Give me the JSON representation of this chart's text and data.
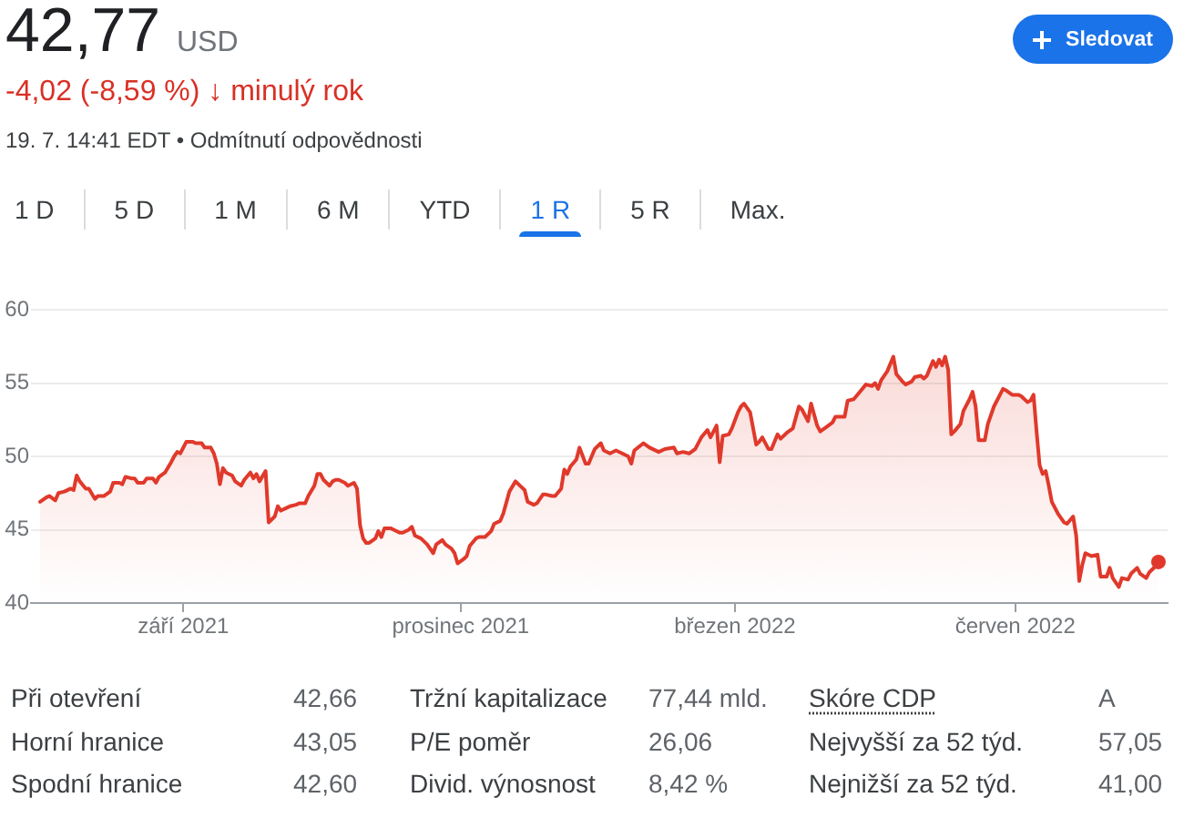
{
  "chart_data": {
    "type": "area",
    "title": "42,77",
    "subtitle": "-4,02 (-8,59 %) ↓ minulý rok",
    "x": [
      "2021-07-16",
      "2021-07-18",
      "2021-07-19",
      "2021-07-21",
      "2021-07-22",
      "2021-07-24",
      "2021-07-26",
      "2021-07-27",
      "2021-07-28",
      "2021-07-29",
      "2021-07-31",
      "2021-08-01",
      "2021-08-03",
      "2021-08-04",
      "2021-08-06",
      "2021-08-08",
      "2021-08-09",
      "2021-08-11",
      "2021-08-12",
      "2021-08-13",
      "2021-08-15",
      "2021-08-16",
      "2021-08-17",
      "2021-08-19",
      "2021-08-20",
      "2021-08-22",
      "2021-08-23",
      "2021-08-24",
      "2021-08-26",
      "2021-08-28",
      "2021-08-29",
      "2021-08-30",
      "2021-08-31",
      "2021-09-02",
      "2021-09-04",
      "2021-09-05",
      "2021-09-07",
      "2021-09-08",
      "2021-09-10",
      "2021-09-11",
      "2021-09-12",
      "2021-09-13",
      "2021-09-14",
      "2021-09-15",
      "2021-09-17",
      "2021-09-18",
      "2021-09-20",
      "2021-09-21",
      "2021-09-23",
      "2021-09-24",
      "2021-09-25",
      "2021-09-26",
      "2021-09-28",
      "2021-09-29",
      "2021-10-01",
      "2021-10-02",
      "2021-10-03",
      "2021-10-05",
      "2021-10-06",
      "2021-10-08",
      "2021-10-09",
      "2021-10-11",
      "2021-10-12",
      "2021-10-14",
      "2021-10-15",
      "2021-10-16",
      "2021-10-17",
      "2021-10-19",
      "2021-10-20",
      "2021-10-21",
      "2021-10-22",
      "2021-10-24",
      "2021-10-25",
      "2021-10-27",
      "2021-10-28",
      "2021-10-29",
      "2021-10-30",
      "2021-10-31",
      "2021-11-01",
      "2021-11-03",
      "2021-11-04",
      "2021-11-05",
      "2021-11-06",
      "2021-11-08",
      "2021-11-09",
      "2021-11-11",
      "2021-11-12",
      "2021-11-14",
      "2021-11-15",
      "2021-11-16",
      "2021-11-18",
      "2021-11-19",
      "2021-11-20",
      "2021-11-22",
      "2021-11-23",
      "2021-11-25",
      "2021-11-26",
      "2021-11-28",
      "2021-11-29",
      "2021-11-30",
      "2021-12-02",
      "2021-12-03",
      "2021-12-04",
      "2021-12-06",
      "2021-12-07",
      "2021-12-09",
      "2021-12-11",
      "2021-12-12",
      "2021-12-14",
      "2021-12-15",
      "2021-12-17",
      "2021-12-19",
      "2021-12-20",
      "2021-12-22",
      "2021-12-23",
      "2021-12-25",
      "2021-12-26",
      "2021-12-28",
      "2021-12-29",
      "2021-12-31",
      "2022-01-01",
      "2022-01-03",
      "2022-01-04",
      "2022-01-05",
      "2022-01-06",
      "2022-01-08",
      "2022-01-09",
      "2022-01-11",
      "2022-01-12",
      "2022-01-14",
      "2022-01-16",
      "2022-01-17",
      "2022-01-19",
      "2022-01-21",
      "2022-01-23",
      "2022-01-25",
      "2022-01-26",
      "2022-01-27",
      "2022-01-30",
      "2022-02-01",
      "2022-02-04",
      "2022-02-06",
      "2022-02-09",
      "2022-02-10",
      "2022-02-12",
      "2022-02-14",
      "2022-02-16",
      "2022-02-18",
      "2022-02-20",
      "2022-02-21",
      "2022-02-23",
      "2022-02-24",
      "2022-02-25",
      "2022-02-27",
      "2022-02-28",
      "2022-03-02",
      "2022-03-03",
      "2022-03-04",
      "2022-03-06",
      "2022-03-08",
      "2022-03-09",
      "2022-03-10",
      "2022-03-12",
      "2022-03-13",
      "2022-03-15",
      "2022-03-16",
      "2022-03-18",
      "2022-03-20",
      "2022-03-22",
      "2022-03-23",
      "2022-03-25",
      "2022-03-26",
      "2022-03-28",
      "2022-03-29",
      "2022-03-31",
      "2022-04-02",
      "2022-04-03",
      "2022-04-05",
      "2022-04-06",
      "2022-04-07",
      "2022-04-09",
      "2022-04-11",
      "2022-04-13",
      "2022-04-15",
      "2022-04-16",
      "2022-04-17",
      "2022-04-18",
      "2022-04-20",
      "2022-04-22",
      "2022-04-23",
      "2022-04-25",
      "2022-04-26",
      "2022-04-28",
      "2022-04-29",
      "2022-05-01",
      "2022-05-02",
      "2022-05-03",
      "2022-05-05",
      "2022-05-06",
      "2022-05-07",
      "2022-05-08",
      "2022-05-09",
      "2022-05-10",
      "2022-05-11",
      "2022-05-12",
      "2022-05-14",
      "2022-05-15",
      "2022-05-17",
      "2022-05-18",
      "2022-05-19",
      "2022-05-20",
      "2022-05-22",
      "2022-05-23",
      "2022-05-25",
      "2022-05-28",
      "2022-05-29",
      "2022-05-31",
      "2022-06-02",
      "2022-06-03",
      "2022-06-05",
      "2022-06-06",
      "2022-06-07",
      "2022-06-08",
      "2022-06-09",
      "2022-06-10",
      "2022-06-11",
      "2022-06-12",
      "2022-06-13",
      "2022-06-15",
      "2022-06-17",
      "2022-06-18",
      "2022-06-20",
      "2022-06-21",
      "2022-06-22",
      "2022-06-23",
      "2022-06-24",
      "2022-06-26",
      "2022-06-28",
      "2022-06-29",
      "2022-07-01",
      "2022-07-02",
      "2022-07-03",
      "2022-07-05",
      "2022-07-06",
      "2022-07-08",
      "2022-07-09",
      "2022-07-11",
      "2022-07-12",
      "2022-07-14",
      "2022-07-15",
      "2022-07-17",
      "2022-07-18"
    ],
    "values": [
      46.9,
      47.2,
      47.3,
      47.0,
      47.5,
      47.6,
      47.8,
      47.7,
      48.7,
      48.3,
      47.8,
      47.8,
      47.1,
      47.3,
      47.3,
      47.6,
      48.2,
      48.2,
      48.1,
      48.6,
      48.5,
      48.5,
      48.2,
      48.2,
      48.5,
      48.5,
      48.2,
      48.6,
      48.9,
      49.6,
      50.0,
      50.3,
      50.2,
      51.0,
      51.0,
      50.9,
      50.9,
      50.6,
      50.6,
      50.2,
      49.5,
      48.1,
      49.2,
      48.9,
      48.7,
      48.3,
      48.0,
      48.4,
      48.9,
      48.5,
      48.8,
      48.3,
      49.0,
      45.5,
      45.9,
      46.6,
      46.3,
      46.5,
      46.6,
      46.7,
      46.8,
      46.8,
      47.3,
      48.0,
      48.8,
      48.8,
      48.4,
      48.0,
      48.3,
      48.4,
      48.4,
      48.2,
      48.0,
      48.2,
      47.8,
      45.3,
      44.4,
      44.1,
      44.1,
      44.4,
      44.9,
      44.5,
      45.1,
      45.1,
      45.0,
      44.8,
      44.8,
      45.0,
      45.2,
      44.6,
      44.4,
      44.2,
      44.0,
      43.4,
      44.0,
      44.3,
      44.0,
      43.7,
      43.4,
      42.7,
      43.0,
      43.2,
      43.9,
      44.4,
      44.5,
      44.5,
      44.9,
      45.4,
      45.6,
      46.1,
      47.6,
      48.3,
      48.1,
      47.7,
      46.9,
      46.7,
      46.8,
      47.4,
      47.4,
      47.3,
      47.3,
      47.8,
      49.1,
      48.8,
      49.3,
      49.8,
      50.6,
      49.5,
      49.5,
      50.5,
      50.9,
      50.4,
      50.2,
      50.4,
      50.2,
      50.0,
      49.5,
      50.4,
      50.9,
      50.6,
      50.3,
      50.5,
      50.6,
      50.2,
      50.3,
      50.2,
      50.5,
      51.3,
      51.8,
      51.3,
      52.1,
      49.6,
      51.4,
      51.5,
      51.9,
      53.0,
      53.4,
      53.6,
      53.0,
      50.8,
      51.0,
      51.3,
      50.5,
      50.5,
      51.5,
      51.2,
      51.6,
      51.9,
      53.4,
      53.2,
      52.4,
      53.6,
      52.1,
      51.7,
      52.0,
      52.3,
      52.7,
      52.7,
      52.7,
      53.8,
      53.9,
      54.4,
      54.9,
      54.8,
      55.0,
      54.6,
      55.2,
      55.8,
      56.8,
      55.6,
      55.1,
      54.9,
      55.1,
      55.4,
      55.5,
      55.3,
      55.5,
      56.5,
      56.1,
      56.6,
      56.2,
      56.8,
      55.9,
      51.5,
      51.7,
      52.2,
      53.1,
      53.9,
      54.4,
      53.4,
      51.1,
      51.1,
      52.2,
      53.4,
      54.6,
      54.5,
      54.2,
      54.2,
      54.1,
      53.7,
      53.8,
      54.2,
      51.7,
      49.4,
      48.8,
      49.0,
      48.0,
      46.9,
      46.1,
      45.5,
      45.4,
      45.9,
      44.6,
      41.5,
      42.6,
      43.4,
      43.2,
      43.3,
      41.8,
      41.8,
      42.4,
      41.7,
      41.1,
      41.7,
      41.6,
      42.0,
      42.4,
      42.0,
      41.7,
      42.1,
      42.5,
      42.8
    ],
    "color": "#e0392b",
    "xlim": [
      "2021-07-13",
      "2022-07-21"
    ],
    "xticks": [
      {
        "value": "2021-09-01",
        "label": "září 2021"
      },
      {
        "value": "2021-12-01",
        "label": "prosinec 2021"
      },
      {
        "value": "2022-03-01",
        "label": "březen 2022"
      },
      {
        "value": "2022-06-01",
        "label": "červen 2022"
      }
    ],
    "ylim": [
      40,
      60
    ],
    "yticks": [
      40,
      45,
      50,
      55,
      60
    ],
    "grid": "y",
    "annotations": [
      "USD",
      "19. 7. 14:41 EDT • Odmítnutí odpovědnosti",
      "Sledovat",
      "1 D",
      "5 D",
      "1 M",
      "6 M",
      "YTD",
      "1 R",
      "5 R",
      "Max.",
      "Při otevření",
      "42,66",
      "Tržní kapitalizace",
      "77,44 mld.",
      "Skóre CDP",
      "A",
      "Horní hranice",
      "43,05",
      "P/E poměr",
      "26,06",
      "Nejvyšší za 52 týd.",
      "57,05",
      "Spodní hranice",
      "42,60",
      "Divid. výnosnost",
      "8,42 %",
      "Nejnižší za 52 týd.",
      "41,00"
    ]
  }
}
